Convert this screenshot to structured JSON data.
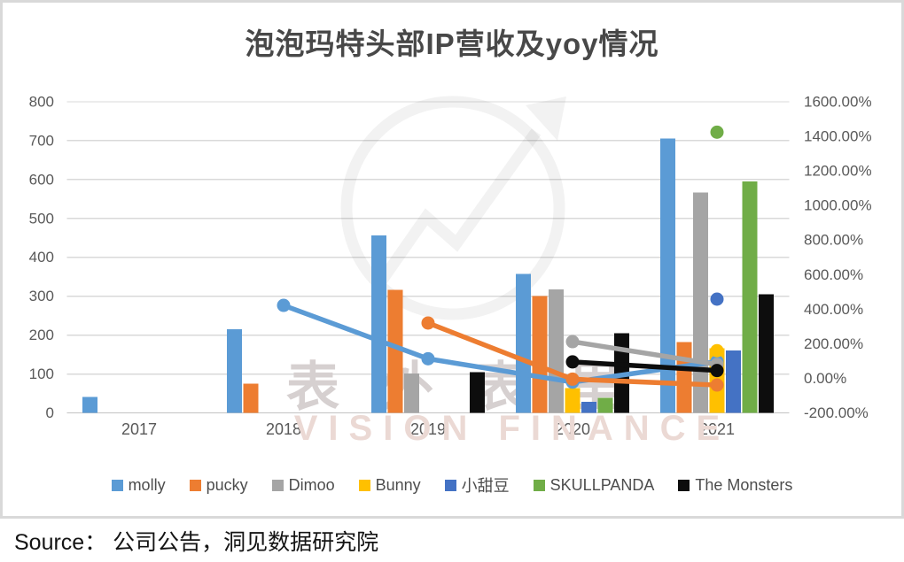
{
  "title": "泡泡玛特头部IP营收及yoy情况",
  "source_line": "Source： 公司公告，洞见数据研究院",
  "watermark": {
    "cjk": "表外表里",
    "latin": "VISION FINANCE"
  },
  "chart_data": {
    "type": "bar",
    "subtype": "combo dual-axis: grouped bars (revenue, left axis) + yoy lines/dots (right axis)",
    "title": "泡泡玛特头部IP营收及yoy情况",
    "categories": [
      "2017",
      "2018",
      "2019",
      "2020",
      "2021"
    ],
    "left_axis": {
      "min": 0,
      "max": 800,
      "step": 100,
      "tick_labels": [
        "800",
        "700",
        "600",
        "500",
        "400",
        "300",
        "200",
        "100",
        "0"
      ],
      "grid": true
    },
    "right_axis": {
      "min": -200,
      "max": 1600,
      "step": 200,
      "tick_labels": [
        "1600.00%",
        "1400.00%",
        "1200.00%",
        "1000.00%",
        "800.00%",
        "600.00%",
        "400.00%",
        "200.00%",
        "0.00%",
        "-200.00%"
      ]
    },
    "legend": {
      "position": "bottom",
      "entries": [
        "molly",
        "pucky",
        "Dimoo",
        "Bunny",
        "小甜豆",
        "SKULLPANDA",
        "The Monsters"
      ]
    },
    "bar_series": [
      {
        "name": "molly",
        "color": "#5B9BD5",
        "values": [
          41,
          215,
          456,
          357,
          705
        ]
      },
      {
        "name": "pucky",
        "color": "#ED7D31",
        "values": [
          null,
          75,
          316,
          300,
          182
        ]
      },
      {
        "name": "Dimoo",
        "color": "#A5A5A5",
        "values": [
          null,
          null,
          101,
          318,
          567
        ]
      },
      {
        "name": "Bunny",
        "color": "#FFC000",
        "values": [
          null,
          null,
          null,
          64,
          166
        ]
      },
      {
        "name": "小甜豆",
        "color": "#4472C4",
        "values": [
          null,
          null,
          null,
          29,
          161
        ]
      },
      {
        "name": "SKULLPANDA",
        "color": "#70AD47",
        "values": [
          null,
          null,
          null,
          39,
          595
        ]
      },
      {
        "name": "The Monsters",
        "color": "#0d0d0d",
        "values": [
          null,
          null,
          105,
          205,
          305
        ]
      }
    ],
    "line_series": [
      {
        "name": "molly yoy",
        "color": "#5B9BD5",
        "values": [
          null,
          422,
          113,
          -22,
          97
        ]
      },
      {
        "name": "pucky yoy",
        "color": "#ED7D31",
        "values": [
          null,
          null,
          320,
          -5,
          -39
        ]
      },
      {
        "name": "Dimoo yoy",
        "color": "#A5A5A5",
        "values": [
          null,
          null,
          null,
          212,
          80
        ]
      },
      {
        "name": "Bunny yoy",
        "color": "#FFC000",
        "values": [
          null,
          null,
          null,
          null,
          160
        ]
      },
      {
        "name": "小甜豆 yoy",
        "color": "#4472C4",
        "values": [
          null,
          null,
          null,
          null,
          458
        ]
      },
      {
        "name": "SKULLPANDA yoy",
        "color": "#70AD47",
        "values": [
          null,
          null,
          null,
          null,
          1424
        ]
      },
      {
        "name": "The Monsters yoy",
        "color": "#0d0d0d",
        "values": [
          null,
          null,
          null,
          95,
          45
        ]
      }
    ],
    "style": {
      "grid_color": "#d9d9d9",
      "baseline_color": "#c3c3c3",
      "axis_text_color": "#595959",
      "title_color": "#484848"
    }
  }
}
